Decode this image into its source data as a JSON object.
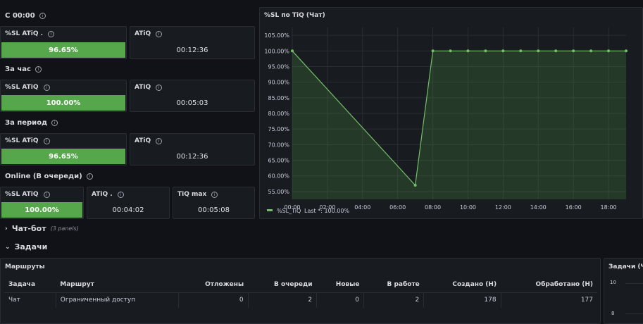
{
  "colors": {
    "background": "#111217",
    "panel": "#181b1f",
    "border": "#2a2d33",
    "green": "#56a64b",
    "series": "#73bf69"
  },
  "sections": [
    {
      "title": "С 00:00",
      "sl_title": "%SL ATiQ .",
      "sl_value": "96.65%",
      "atiq_title": "ATiQ",
      "atiq_value": "00:12:36"
    },
    {
      "title": "За час",
      "sl_title": "%SL ATiQ",
      "sl_value": "100.00%",
      "atiq_title": "ATiQ",
      "atiq_value": "00:05:03"
    },
    {
      "title": "За период",
      "sl_title": "%SL ATiQ",
      "sl_value": "96.65%",
      "atiq_title": "ATiQ",
      "atiq_value": "00:12:36"
    }
  ],
  "online": {
    "title": "Online (В очереди)",
    "sl_title": "%SL ATiQ",
    "sl_value": "100.00%",
    "atiq_title": "ATiQ .",
    "atiq_value": "00:04:02",
    "tiqmax_title": "TiQ max",
    "tiqmax_value": "00:05:08"
  },
  "chart_panel": {
    "title": "%SL по TiQ (Чат)"
  },
  "chart_data": {
    "type": "area",
    "title": "%SL по TiQ (Чат)",
    "x_ticks": [
      "00:00",
      "02:00",
      "04:00",
      "06:00",
      "08:00",
      "10:00",
      "12:00",
      "14:00",
      "16:00",
      "18:00"
    ],
    "y_ticks": [
      "55.00%",
      "60.00%",
      "65.00%",
      "70.00%",
      "75.00%",
      "80.00%",
      "85.00%",
      "90.00%",
      "95.00%",
      "100.00%",
      "105.00%"
    ],
    "ylim": [
      52.5,
      107.5
    ],
    "xlim_hours": [
      0,
      19.0
    ],
    "series": [
      {
        "name": "%SL_TiQ",
        "x_hours": [
          0,
          7,
          8,
          9,
          10,
          11,
          12,
          13,
          14,
          15,
          16,
          17,
          18,
          19
        ],
        "values": [
          100,
          57,
          100,
          100,
          100,
          100,
          100,
          100,
          100,
          100,
          100,
          100,
          100,
          100
        ]
      }
    ],
    "legend": {
      "position": "bottom-left",
      "series_label": "%SL_TiQ",
      "stat_label": "Last *: 100.00%"
    },
    "grid": true
  },
  "chatbot_row": {
    "title": "Чат-бот",
    "note": "(3 panels)"
  },
  "tasks_row": {
    "title": "Задачи"
  },
  "routes_panel": {
    "title": "Маршруты",
    "columns": [
      "Задача",
      "Маршрут",
      "Отложены",
      "В очереди",
      "Новые",
      "В работе",
      "Создано (Н)",
      "Обработано (Н)"
    ],
    "rows": [
      [
        "Чат",
        "Ограниченный доступ",
        "0",
        "2",
        "0",
        "2",
        "178",
        "177"
      ]
    ]
  },
  "tasks_panel": {
    "title": "Задачи (Ча",
    "y_ticks": [
      "10",
      "8"
    ]
  }
}
